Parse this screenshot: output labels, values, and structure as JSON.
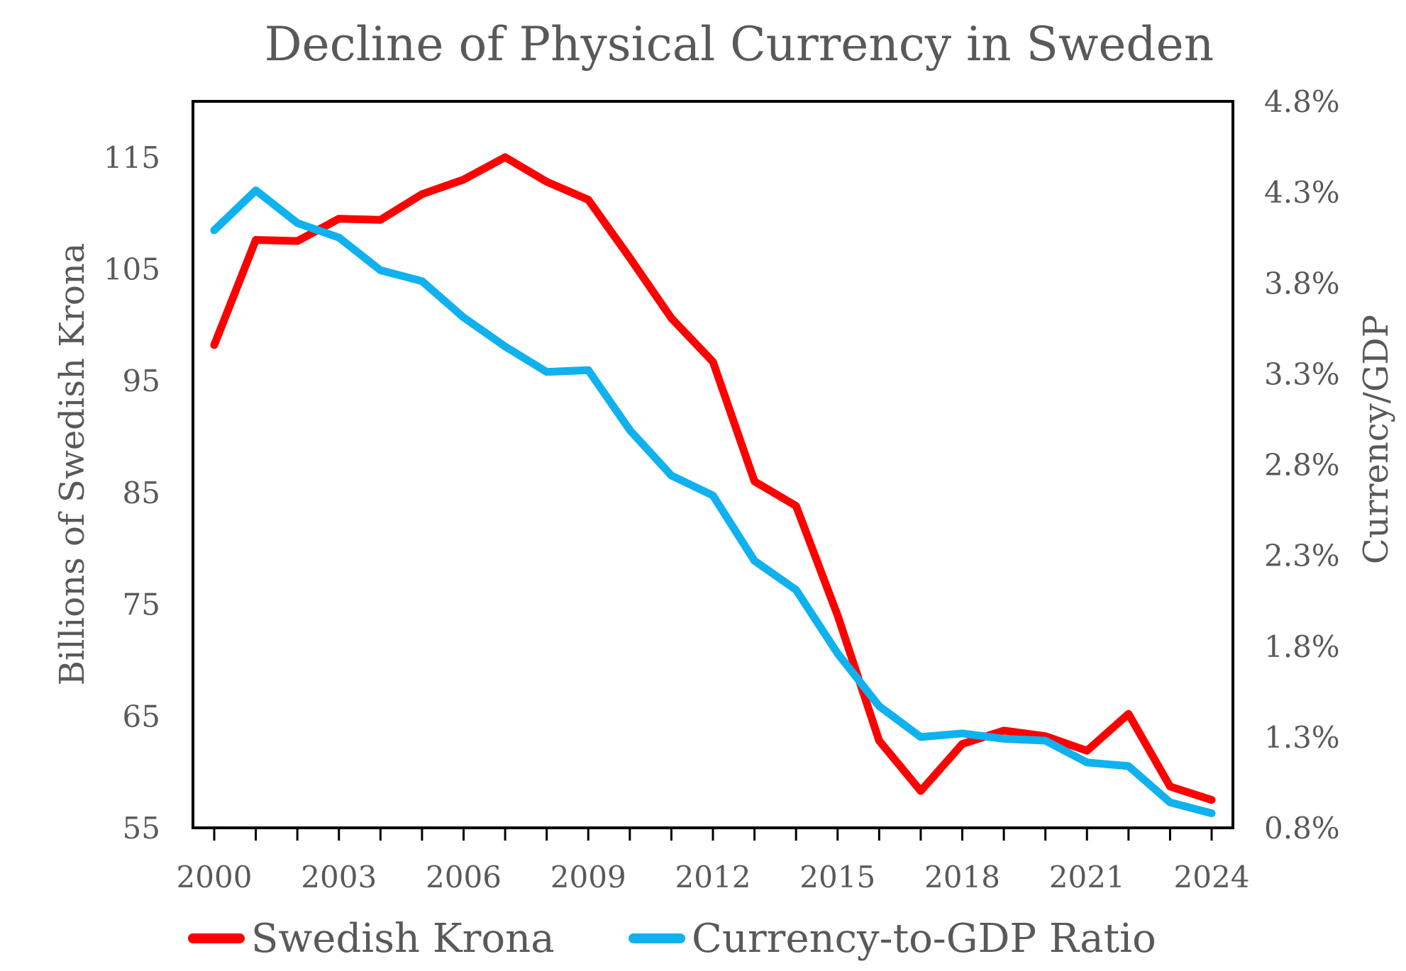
{
  "chart_data": {
    "type": "line",
    "title": "Decline of Physical Currency in Sweden",
    "ylabel": "Billions of Swedish Krona",
    "y2label": "Currency/GDP",
    "x": [
      2000,
      2001,
      2002,
      2003,
      2004,
      2005,
      2006,
      2007,
      2008,
      2009,
      2010,
      2011,
      2012,
      2013,
      2014,
      2015,
      2016,
      2017,
      2018,
      2019,
      2020,
      2021,
      2022,
      2023,
      2024
    ],
    "xticks": [
      "2000",
      "2003",
      "2006",
      "2009",
      "2012",
      "2015",
      "2018",
      "2021",
      "2024"
    ],
    "xlim": [
      2000,
      2024
    ],
    "ylim": [
      55,
      120
    ],
    "yticks": [
      "55",
      "65",
      "75",
      "85",
      "95",
      "105",
      "115"
    ],
    "y2lim": [
      0.8,
      4.8
    ],
    "y2ticks": [
      "0.8%",
      "1.3%",
      "1.8%",
      "2.3%",
      "2.8%",
      "3.3%",
      "3.8%",
      "4.3%",
      "4.8%"
    ],
    "grid": false,
    "legend_position": "bottom",
    "series": [
      {
        "name": "Swedish Krona",
        "axis": "left",
        "color": "#ff0000",
        "values": [
          98.2,
          107.6,
          107.5,
          109.5,
          109.4,
          111.7,
          113.0,
          115.0,
          112.8,
          111.2,
          106.0,
          100.6,
          96.7,
          86.0,
          83.8,
          74.0,
          62.8,
          58.3,
          62.5,
          63.7,
          63.2,
          61.9,
          65.2,
          58.7,
          57.5
        ]
      },
      {
        "name": "Currency-to-GDP Ratio",
        "axis": "right",
        "color": "#0fb2ee",
        "values": [
          4.09,
          4.31,
          4.13,
          4.05,
          3.87,
          3.81,
          3.61,
          3.45,
          3.31,
          3.32,
          2.99,
          2.74,
          2.63,
          2.27,
          2.11,
          1.76,
          1.47,
          1.3,
          1.32,
          1.29,
          1.28,
          1.16,
          1.14,
          0.94,
          0.88
        ]
      }
    ]
  }
}
